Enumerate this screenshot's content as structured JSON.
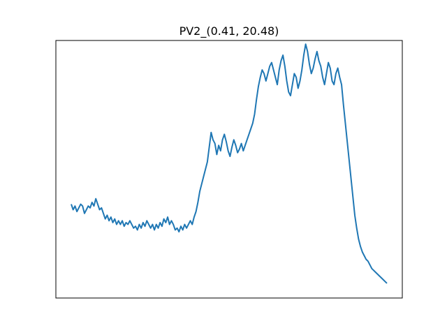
{
  "chart_data": {
    "type": "line",
    "title": "PV2_(0.41, 20.48)",
    "xlabel": "",
    "ylabel": "",
    "x_ticks": [],
    "y_ticks": [],
    "grid": false,
    "legend": "none",
    "series": [
      {
        "color": "#1f77b4",
        "y": [
          0.71,
          0.68,
          0.7,
          0.67,
          0.69,
          0.71,
          0.7,
          0.66,
          0.68,
          0.7,
          0.69,
          0.72,
          0.7,
          0.74,
          0.71,
          0.68,
          0.69,
          0.66,
          0.63,
          0.65,
          0.62,
          0.64,
          0.61,
          0.63,
          0.6,
          0.62,
          0.6,
          0.62,
          0.59,
          0.61,
          0.6,
          0.62,
          0.6,
          0.58,
          0.59,
          0.57,
          0.6,
          0.58,
          0.61,
          0.59,
          0.62,
          0.6,
          0.58,
          0.6,
          0.57,
          0.6,
          0.58,
          0.61,
          0.59,
          0.63,
          0.61,
          0.64,
          0.6,
          0.62,
          0.6,
          0.57,
          0.58,
          0.56,
          0.59,
          0.57,
          0.6,
          0.58,
          0.6,
          0.62,
          0.6,
          0.64,
          0.67,
          0.72,
          0.78,
          0.82,
          0.86,
          0.9,
          0.94,
          1.02,
          1.1,
          1.06,
          1.04,
          0.98,
          1.03,
          1.0,
          1.06,
          1.09,
          1.05,
          1.0,
          0.97,
          1.02,
          1.06,
          1.03,
          0.99,
          1.01,
          1.04,
          1.0,
          1.03,
          1.06,
          1.09,
          1.12,
          1.15,
          1.2,
          1.28,
          1.35,
          1.4,
          1.44,
          1.42,
          1.38,
          1.42,
          1.46,
          1.48,
          1.44,
          1.4,
          1.36,
          1.44,
          1.49,
          1.52,
          1.46,
          1.38,
          1.32,
          1.3,
          1.36,
          1.42,
          1.4,
          1.34,
          1.38,
          1.44,
          1.52,
          1.58,
          1.54,
          1.47,
          1.42,
          1.45,
          1.5,
          1.54,
          1.49,
          1.46,
          1.4,
          1.36,
          1.42,
          1.48,
          1.45,
          1.38,
          1.36,
          1.42,
          1.45,
          1.4,
          1.36,
          1.25,
          1.15,
          1.05,
          0.95,
          0.85,
          0.75,
          0.65,
          0.58,
          0.52,
          0.48,
          0.45,
          0.43,
          0.41,
          0.4,
          0.38,
          0.36,
          0.35,
          0.34,
          0.33,
          0.32,
          0.31,
          0.3,
          0.29,
          0.28
        ]
      }
    ],
    "ylim": [
      0.2,
      1.6
    ]
  }
}
